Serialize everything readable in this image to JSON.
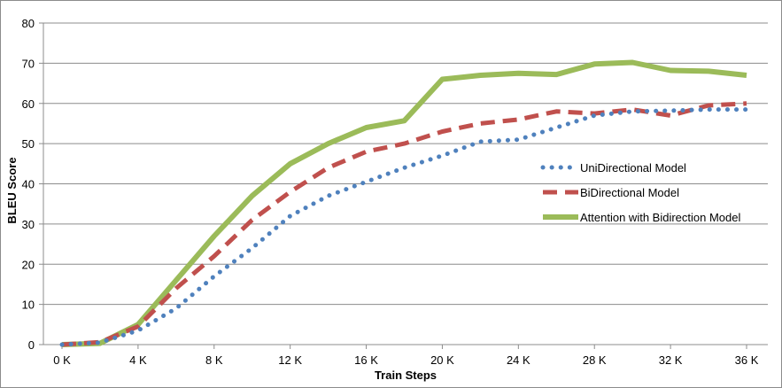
{
  "chart_data": {
    "type": "line",
    "title": "",
    "xlabel": "Train Steps",
    "ylabel": "BLEU Score",
    "ylim": [
      0,
      80
    ],
    "yticks": [
      "0",
      "10",
      "20",
      "30",
      "40",
      "50",
      "60",
      "70",
      "80"
    ],
    "xticks": [
      "0 K",
      "4 K",
      "8 K",
      "12 K",
      "16 K",
      "20 K",
      "24 K",
      "28 K",
      "32 K",
      "36 K"
    ],
    "grid": "horizontal",
    "legend_position": "right",
    "x": [
      0,
      2,
      4,
      6,
      8,
      10,
      12,
      14,
      16,
      18,
      20,
      22,
      24,
      26,
      28,
      30,
      32,
      34,
      36
    ],
    "series": [
      {
        "name": "UniDirectional Model",
        "color": "#4F81BD",
        "style": "dotted",
        "values": [
          0,
          0.5,
          3.5,
          9,
          17,
          24,
          32,
          37,
          40.5,
          44,
          47,
          50.5,
          51,
          54,
          57,
          58,
          58.2,
          58.5,
          58.5
        ]
      },
      {
        "name": "BiDirectional Model",
        "color": "#C0504D",
        "style": "dashed",
        "values": [
          0,
          0.6,
          4.5,
          14,
          22,
          31,
          38,
          44,
          48,
          50,
          53,
          55,
          56,
          58,
          57.5,
          58.5,
          57,
          59.5,
          60
        ]
      },
      {
        "name": "Attention with Bidirection Model",
        "color": "#9BBB59",
        "style": "solid",
        "values": [
          0,
          0.3,
          5,
          16,
          27,
          37,
          45,
          50,
          54,
          55.7,
          66,
          67,
          67.5,
          67.2,
          69.8,
          70.2,
          68.2,
          68,
          67
        ]
      }
    ]
  }
}
